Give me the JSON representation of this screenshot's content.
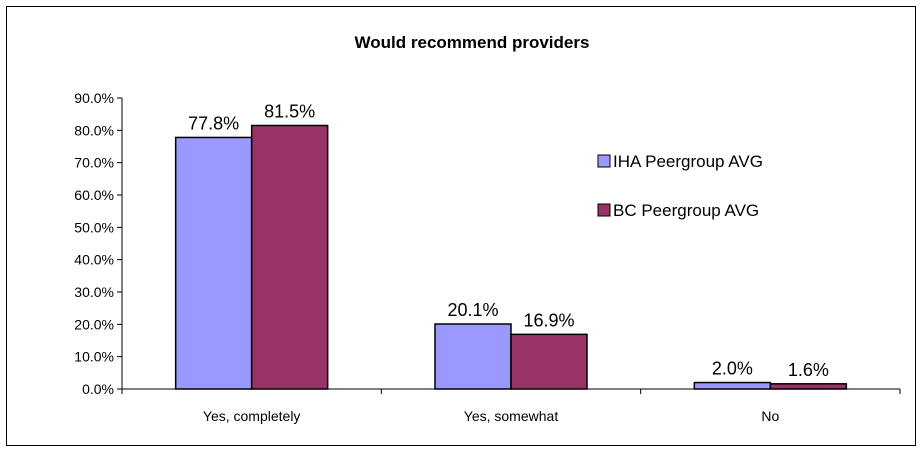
{
  "chart_data": {
    "type": "bar",
    "title": "Would recommend providers",
    "categories": [
      "Yes, completely",
      "Yes, somewhat",
      "No"
    ],
    "series": [
      {
        "name": "IHA Peergroup AVG",
        "values": [
          77.8,
          20.1,
          2.0
        ],
        "color": "#9999ff"
      },
      {
        "name": "BC Peergroup AVG",
        "values": [
          81.5,
          16.9,
          1.6
        ],
        "color": "#993366"
      }
    ],
    "ylim": [
      0,
      90
    ],
    "yticks": [
      "0.0%",
      "10.0%",
      "20.0%",
      "30.0%",
      "40.0%",
      "50.0%",
      "60.0%",
      "70.0%",
      "80.0%",
      "90.0%"
    ],
    "data_labels": [
      [
        "77.8%",
        "20.1%",
        "2.0%"
      ],
      [
        "81.5%",
        "16.9%",
        "1.6%"
      ]
    ],
    "legend_position": "right",
    "grid": false
  }
}
